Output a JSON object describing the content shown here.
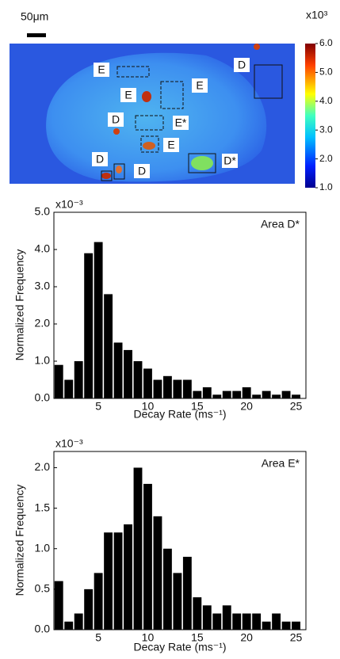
{
  "chart_data": [
    {
      "type": "heatmap",
      "scale_bar": "50μm",
      "colorbar_label": "x10³",
      "colorbar_lim": [
        1,
        6
      ],
      "colorbar_ticks": [
        {
          "value": 1,
          "label": "1.0"
        },
        {
          "value": 2,
          "label": "2.0"
        },
        {
          "value": 3,
          "label": "3.0"
        },
        {
          "value": 4,
          "label": "4.0"
        },
        {
          "value": 5,
          "label": "5.0"
        },
        {
          "value": 6,
          "label": "6.0"
        }
      ],
      "region_labels": [
        "E",
        "E",
        "E",
        "D",
        "E*",
        "E",
        "D",
        "D",
        "D*",
        "D"
      ]
    },
    {
      "type": "histogram",
      "multiplier": "x10⁻³",
      "annotation": "Area D*",
      "x_label": "Decay Rate (ms⁻¹)",
      "y_label": "Normalized Frequency",
      "color": "#000000",
      "bins": [
        0.5,
        1.5,
        2.5,
        3.5,
        4.5,
        5.5,
        6.5,
        7.5,
        8.5,
        9.5,
        10.5,
        11.5,
        12.5,
        13.5,
        14.5,
        15.5,
        16.5,
        17.5,
        18.5,
        19.5,
        20.5,
        21.5,
        22.5,
        23.5,
        24.5,
        25.5
      ],
      "values": [
        0.9,
        0.5,
        1.0,
        3.9,
        4.2,
        2.8,
        1.5,
        1.3,
        1.0,
        0.8,
        0.5,
        0.6,
        0.5,
        0.5,
        0.2,
        0.3,
        0.1,
        0.2,
        0.2,
        0.3,
        0.1,
        0.2,
        0.1,
        0.2,
        0.1
      ],
      "xlim": [
        0.5,
        26
      ],
      "ylim": [
        0,
        5
      ],
      "xticks": [
        5,
        10,
        15,
        20,
        25
      ],
      "yticks": [
        {
          "value": 0,
          "label": "0.0"
        },
        {
          "value": 1,
          "label": "1.0"
        },
        {
          "value": 2,
          "label": "2.0"
        },
        {
          "value": 3,
          "label": "3.0"
        },
        {
          "value": 4,
          "label": "4.0"
        },
        {
          "value": 5,
          "label": "5.0"
        }
      ]
    },
    {
      "type": "histogram",
      "multiplier": "x10⁻³",
      "annotation": "Area E*",
      "x_label": "Decay Rate (ms⁻¹)",
      "y_label": "Normalized Frequency",
      "color": "#000000",
      "bins": [
        0.5,
        1.5,
        2.5,
        3.5,
        4.5,
        5.5,
        6.5,
        7.5,
        8.5,
        9.5,
        10.5,
        11.5,
        12.5,
        13.5,
        14.5,
        15.5,
        16.5,
        17.5,
        18.5,
        19.5,
        20.5,
        21.5,
        22.5,
        23.5,
        24.5,
        25.5
      ],
      "values": [
        0.6,
        0.1,
        0.2,
        0.5,
        0.7,
        1.2,
        1.2,
        1.3,
        2.0,
        1.8,
        1.4,
        1.0,
        0.7,
        0.9,
        0.4,
        0.3,
        0.2,
        0.3,
        0.2,
        0.2,
        0.2,
        0.1,
        0.2,
        0.1,
        0.1
      ],
      "xlim": [
        0.5,
        26
      ],
      "ylim": [
        0,
        2.2
      ],
      "xticks": [
        5,
        10,
        15,
        20,
        25
      ],
      "yticks": [
        {
          "value": 0,
          "label": "0.0"
        },
        0.5,
        {
          "value": 1,
          "label": "1.0"
        },
        1.5,
        {
          "value": 2,
          "label": "2.0"
        }
      ]
    }
  ]
}
